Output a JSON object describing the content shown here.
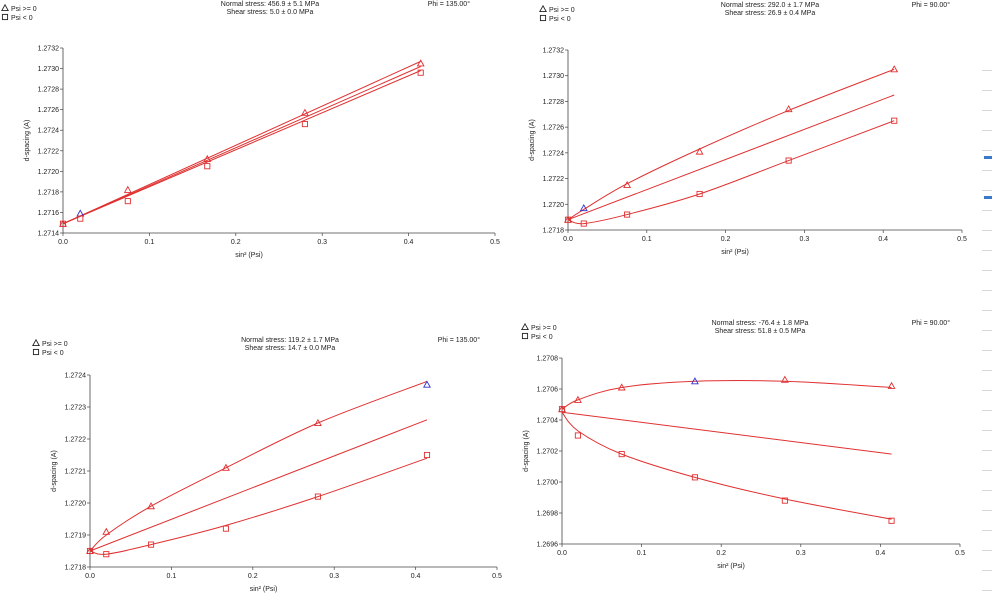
{
  "legend": {
    "ge_label": "Psi >= 0",
    "lt_label": "Psi <  0"
  },
  "colors": {
    "curve": "#e03030",
    "point": "#e03030",
    "highlight": "#2f2fd0",
    "accent": "#3a78c9"
  },
  "chart_data": [
    {
      "type": "scatter",
      "title_normal": "Normal stress: 456.9 ± 5.1 MPa",
      "title_shear": "Shear stress: 5.0 ± 0.0 MPa",
      "phi": "Phi = 135.00°",
      "xlabel": "sin² (Psi)",
      "ylabel": "d-spacing (A)",
      "xlim": [
        0,
        0.5
      ],
      "ylim": [
        1.2714,
        1.2732
      ],
      "xticks": [
        "0.0",
        "0.1",
        "0.2",
        "0.3",
        "0.4",
        "0.5"
      ],
      "yticks": [
        "1.2714",
        "1.2716",
        "1.2718",
        "1.2720",
        "1.2722",
        "1.2724",
        "1.2726",
        "1.2728",
        "1.2730",
        "1.2732"
      ],
      "psi_pos": {
        "x": [
          0.0,
          0.02,
          0.075,
          0.167,
          0.28,
          0.414
        ],
        "y": [
          1.27149,
          1.27159,
          1.27182,
          1.27212,
          1.27257,
          1.27305
        ],
        "highlight": [
          1
        ]
      },
      "psi_neg": {
        "x": [
          0.0,
          0.02,
          0.075,
          0.167,
          0.28,
          0.414
        ],
        "y": [
          1.27149,
          1.27154,
          1.27171,
          1.27205,
          1.27246,
          1.27296
        ]
      },
      "fit_upper": {
        "x": [
          0.0,
          0.414
        ],
        "y": [
          1.27149,
          1.27307
        ]
      },
      "fit_mid": {
        "x": [
          0.0,
          0.414
        ],
        "y": [
          1.27149,
          1.27302
        ]
      },
      "fit_lower": {
        "x": [
          0.0,
          0.414
        ],
        "y": [
          1.27149,
          1.27298
        ]
      }
    },
    {
      "type": "scatter",
      "title_normal": "Normal stress: 292.0 ± 1.7 MPa",
      "title_shear": "Shear stress: 26.9 ± 0.4 MPa",
      "phi": "Phi = 90.00°",
      "xlabel": "sin² (Psi)",
      "ylabel": "d-spacing (A)",
      "xlim": [
        0,
        0.5
      ],
      "ylim": [
        1.2718,
        1.2732
      ],
      "xticks": [
        "0.0",
        "0.1",
        "0.2",
        "0.3",
        "0.4",
        "0.5"
      ],
      "yticks": [
        "1.2718",
        "1.2720",
        "1.2722",
        "1.2724",
        "1.2726",
        "1.2728",
        "1.2730",
        "1.2732"
      ],
      "psi_pos": {
        "x": [
          0.0,
          0.02,
          0.075,
          0.167,
          0.28,
          0.414
        ],
        "y": [
          1.27188,
          1.27197,
          1.27215,
          1.27241,
          1.27274,
          1.27305
        ],
        "highlight": [
          1
        ]
      },
      "psi_neg": {
        "x": [
          0.0,
          0.02,
          0.075,
          0.167,
          0.28,
          0.414
        ],
        "y": [
          1.27188,
          1.27185,
          1.27192,
          1.27208,
          1.27234,
          1.27265
        ]
      },
      "fit_upper": {
        "x": [
          0.0,
          0.02,
          0.075,
          0.167,
          0.28,
          0.414
        ],
        "y": [
          1.27188,
          1.27196,
          1.27216,
          1.27243,
          1.27273,
          1.27305
        ]
      },
      "fit_mid": {
        "x": [
          0.0,
          0.414
        ],
        "y": [
          1.27188,
          1.27285
        ]
      },
      "fit_lower": {
        "x": [
          0.0,
          0.02,
          0.075,
          0.167,
          0.28,
          0.414
        ],
        "y": [
          1.27188,
          1.27185,
          1.27192,
          1.27208,
          1.27234,
          1.27265
        ]
      }
    },
    {
      "type": "scatter",
      "title_normal": "Normal stress: 119.2 ± 1.7 MPa",
      "title_shear": "Shear stress: 14.7 ± 0.0 MPa",
      "phi": "Phi = 135.00°",
      "xlabel": "sin² (Psi)",
      "ylabel": "d-spacing (A)",
      "xlim": [
        0,
        0.5
      ],
      "ylim": [
        1.2718,
        1.2724
      ],
      "xticks": [
        "0.0",
        "0.1",
        "0.2",
        "0.3",
        "0.4",
        "0.5"
      ],
      "yticks": [
        "1.2718",
        "1.2719",
        "1.2720",
        "1.2721",
        "1.2722",
        "1.2723",
        "1.2724"
      ],
      "psi_pos": {
        "x": [
          0.0,
          0.02,
          0.075,
          0.167,
          0.28,
          0.414
        ],
        "y": [
          1.27185,
          1.27191,
          1.27199,
          1.27211,
          1.27225,
          1.27237
        ],
        "highlight": [
          5
        ]
      },
      "psi_neg": {
        "x": [
          0.0,
          0.02,
          0.075,
          0.167,
          0.28,
          0.414
        ],
        "y": [
          1.27185,
          1.27184,
          1.27187,
          1.27192,
          1.27202,
          1.27215
        ]
      },
      "fit_upper": {
        "x": [
          0.0,
          0.02,
          0.075,
          0.167,
          0.28,
          0.414
        ],
        "y": [
          1.27185,
          1.2719,
          1.27199,
          1.27211,
          1.27225,
          1.27238
        ]
      },
      "fit_mid": {
        "x": [
          0.0,
          0.414
        ],
        "y": [
          1.27185,
          1.27226
        ]
      },
      "fit_lower": {
        "x": [
          0.0,
          0.02,
          0.075,
          0.167,
          0.28,
          0.414
        ],
        "y": [
          1.27185,
          1.27184,
          1.27187,
          1.27193,
          1.27202,
          1.27214
        ]
      }
    },
    {
      "type": "scatter",
      "title_normal": "Normal stress: -76.4 ± 1.8 MPa",
      "title_shear": "Shear stress: 51.8 ± 0.5 MPa",
      "phi": "Phi = 90.00°",
      "xlabel": "sin² (Psi)",
      "ylabel": "d-spacing (A)",
      "xlim": [
        0,
        0.5
      ],
      "ylim": [
        1.2696,
        1.2708
      ],
      "xticks": [
        "0.0",
        "0.1",
        "0.2",
        "0.3",
        "0.4",
        "0.5"
      ],
      "yticks": [
        "1.2696",
        "1.2698",
        "1.2700",
        "1.2702",
        "1.2704",
        "1.2706",
        "1.2708"
      ],
      "psi_pos": {
        "x": [
          0.0,
          0.02,
          0.075,
          0.167,
          0.28,
          0.414
        ],
        "y": [
          1.27047,
          1.27053,
          1.27061,
          1.27065,
          1.27066,
          1.27062
        ],
        "highlight": [
          3
        ]
      },
      "psi_neg": {
        "x": [
          0.0,
          0.02,
          0.075,
          0.167,
          0.28,
          0.414
        ],
        "y": [
          1.27047,
          1.2703,
          1.27018,
          1.27003,
          1.26988,
          1.26975
        ]
      },
      "fit_upper": {
        "x": [
          0.0,
          0.02,
          0.075,
          0.167,
          0.28,
          0.414
        ],
        "y": [
          1.27047,
          1.27053,
          1.27061,
          1.27065,
          1.27065,
          1.27061
        ]
      },
      "fit_mid": {
        "x": [
          0.0,
          0.414
        ],
        "y": [
          1.27045,
          1.27018
        ]
      },
      "fit_lower": {
        "x": [
          0.0,
          0.02,
          0.075,
          0.167,
          0.28,
          0.414
        ],
        "y": [
          1.27045,
          1.27033,
          1.27018,
          1.27003,
          1.26989,
          1.26976
        ]
      }
    }
  ]
}
